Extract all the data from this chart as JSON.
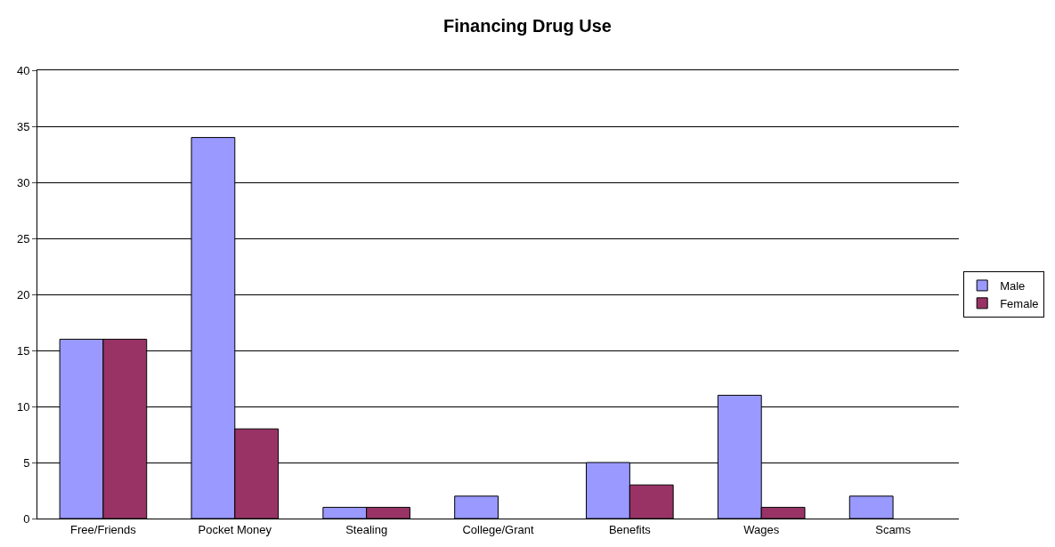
{
  "chart_data": {
    "type": "bar",
    "title": "Financing Drug Use",
    "categories": [
      "Free/Friends",
      "Pocket Money",
      "Stealing",
      "College/Grant",
      "Benefits",
      "Wages",
      "Scams"
    ],
    "series": [
      {
        "name": "Male",
        "color": "#9999ff",
        "values": [
          16,
          34,
          1,
          2,
          5,
          11,
          2
        ]
      },
      {
        "name": "Female",
        "color": "#993366",
        "values": [
          16,
          8,
          1,
          0,
          3,
          1,
          0
        ]
      }
    ],
    "ylim": [
      0,
      40
    ],
    "yticks": [
      0,
      5,
      10,
      15,
      20,
      25,
      30,
      35,
      40
    ],
    "grid": "y",
    "legend": "right"
  }
}
